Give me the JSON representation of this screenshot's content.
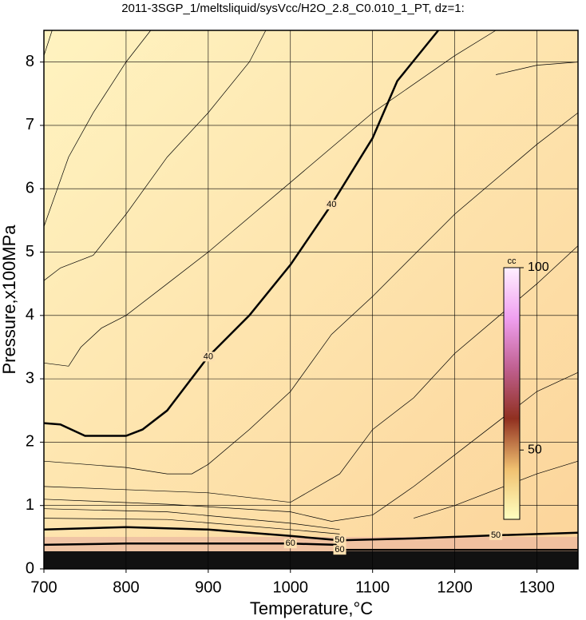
{
  "chart_data": {
    "type": "contour",
    "title": "2011-3SGP_1/meltsliquid/sysVcc/H2O_2.8_C0.010_1_PT, dz=1:",
    "xlabel": "Temperature,°C",
    "ylabel": "Pressure,x100MPa",
    "xlim": [
      700,
      1350
    ],
    "xticks": [
      700,
      800,
      900,
      1000,
      1100,
      1200,
      1300
    ],
    "ylim": [
      0,
      8.5
    ],
    "yticks": [
      0,
      1,
      2,
      3,
      4,
      5,
      6,
      7,
      8
    ],
    "grid": true,
    "contours": [
      {
        "level": 40,
        "x": [
          700,
          720,
          750,
          800,
          820,
          850,
          900,
          950,
          1000,
          1050,
          1100,
          1130,
          1180
        ],
        "y": [
          2.3,
          2.28,
          2.1,
          2.1,
          2.2,
          2.5,
          3.35,
          4.0,
          4.8,
          5.75,
          6.8,
          7.7,
          8.5
        ]
      },
      {
        "level": 50,
        "x": [
          700,
          800,
          900,
          1000,
          1060,
          1150,
          1250,
          1350
        ],
        "y": [
          0.62,
          0.66,
          0.62,
          0.52,
          0.45,
          0.48,
          0.53,
          0.57
        ]
      },
      {
        "level": 60,
        "x": [
          700,
          800,
          900,
          1000,
          1055,
          1060,
          1350
        ],
        "y": [
          0.38,
          0.4,
          0.4,
          0.4,
          0.38,
          0.3,
          0.3
        ]
      },
      {
        "x": [
          700,
          730,
          745,
          770,
          800,
          850,
          900,
          1000,
          1100,
          1200,
          1250
        ],
        "y": [
          3.25,
          3.2,
          3.5,
          3.8,
          4.0,
          4.5,
          5.0,
          6.1,
          7.2,
          8.1,
          8.5
        ]
      },
      {
        "x": [
          700,
          720,
          760,
          800,
          850,
          900,
          950,
          970
        ],
        "y": [
          4.55,
          4.75,
          4.95,
          5.6,
          6.5,
          7.2,
          8.0,
          8.5
        ]
      },
      {
        "x": [
          700,
          730,
          760,
          780,
          800,
          830
        ],
        "y": [
          5.4,
          6.5,
          7.2,
          7.6,
          8.0,
          8.5
        ]
      },
      {
        "x": [
          700,
          710
        ],
        "y": [
          8.1,
          8.5
        ]
      },
      {
        "x": [
          700,
          800,
          850,
          880,
          900,
          950,
          1000,
          1050,
          1100,
          1200,
          1300,
          1350
        ],
        "y": [
          1.7,
          1.6,
          1.5,
          1.5,
          1.65,
          2.2,
          2.8,
          3.7,
          4.3,
          5.6,
          6.7,
          7.2
        ]
      },
      {
        "x": [
          700,
          900,
          1000,
          1060,
          1100,
          1150,
          1200,
          1300,
          1350
        ],
        "y": [
          1.3,
          1.2,
          1.05,
          1.5,
          2.2,
          2.7,
          3.4,
          4.5,
          5.1
        ]
      },
      {
        "x": [
          700,
          850,
          1000,
          1050,
          1100,
          1150,
          1200,
          1300,
          1350
        ],
        "y": [
          1.1,
          1.02,
          0.9,
          0.75,
          0.85,
          1.3,
          1.8,
          2.8,
          3.1
        ]
      },
      {
        "x": [
          1150,
          1200,
          1300,
          1350
        ],
        "y": [
          0.8,
          1.0,
          1.5,
          1.7
        ]
      },
      {
        "x": [
          700,
          850,
          1000,
          1060
        ],
        "y": [
          0.95,
          0.9,
          0.72,
          0.62
        ]
      },
      {
        "x": [
          700,
          850,
          1000,
          1060
        ],
        "y": [
          0.8,
          0.78,
          0.62,
          0.55
        ]
      },
      {
        "x": [
          1250,
          1300,
          1350
        ],
        "y": [
          7.8,
          7.95,
          8.0
        ]
      }
    ],
    "colorbar": {
      "label": "cc",
      "lim": [
        31,
        100
      ],
      "ticks": [
        50,
        100
      ],
      "colors": [
        "#ffffc0",
        "#f0c070",
        "#903020",
        "#c06090",
        "#f0a0f0",
        "#fff0ff"
      ]
    }
  }
}
